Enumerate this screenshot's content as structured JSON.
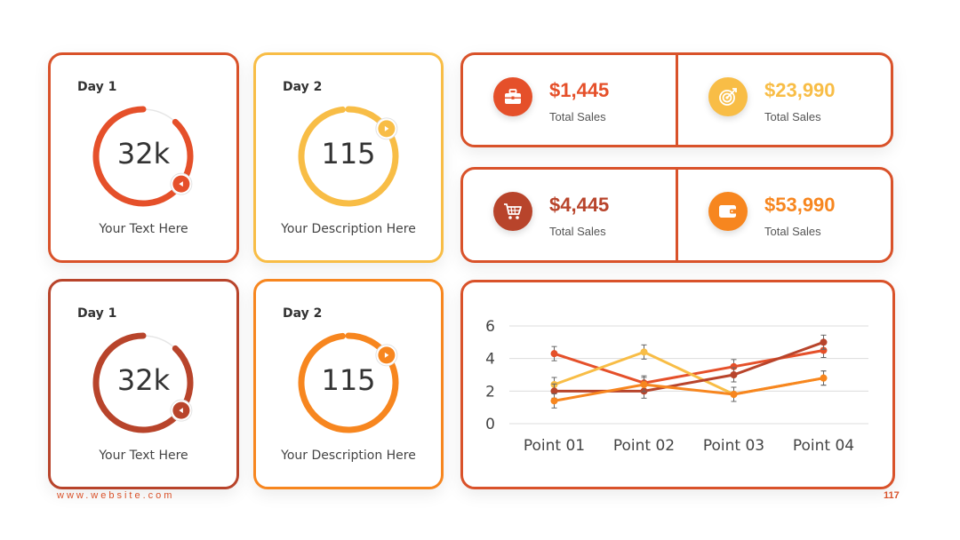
{
  "colors": {
    "red": "#e5502a",
    "yellow": "#f8bd46",
    "brown": "#b8442b",
    "orange": "#f7861f",
    "border": "#d9522a",
    "track": "#e6e6e6"
  },
  "gauges": [
    {
      "day": "Day 1",
      "value": "32k",
      "caption": "Your Text Here",
      "progress": 0.88,
      "color": "#e5502a",
      "border": "#d9522a",
      "marker": "left-arrow-icon"
    },
    {
      "day": "Day 2",
      "value": "115",
      "caption": "Your Description Here",
      "progress": 0.98,
      "color": "#f8bd46",
      "border": "#f8bd46",
      "marker": "right-arrow-icon"
    },
    {
      "day": "Day 1",
      "value": "32k",
      "caption": "Your Text Here",
      "progress": 0.88,
      "color": "#b8442b",
      "border": "#b8442b",
      "marker": "left-arrow-icon"
    },
    {
      "day": "Day 2",
      "value": "115",
      "caption": "Your Description Here",
      "progress": 0.98,
      "color": "#f7861f",
      "border": "#f7861f",
      "marker": "right-arrow-icon"
    }
  ],
  "stats": [
    {
      "amount": "$1,445",
      "label": "Total Sales",
      "color": "#e5502a",
      "icon": "briefcase-icon"
    },
    {
      "amount": "$23,990",
      "label": "Total Sales",
      "color": "#f8bd46",
      "icon": "target-icon"
    },
    {
      "amount": "$4,445",
      "label": "Total Sales",
      "color": "#b8442b",
      "icon": "cart-icon"
    },
    {
      "amount": "$53,990",
      "label": "Total Sales",
      "color": "#f7861f",
      "icon": "wallet-icon"
    }
  ],
  "chart_data": {
    "type": "line",
    "categories": [
      "Point 01",
      "Point 02",
      "Point 03",
      "Point 04"
    ],
    "ylim": [
      0,
      6
    ],
    "yticks": [
      0,
      2,
      4,
      6
    ],
    "grid": true,
    "error_bars": true,
    "series": [
      {
        "values": [
          4.3,
          2.5,
          3.5,
          4.5
        ],
        "color": "#e5502a"
      },
      {
        "values": [
          2.4,
          4.4,
          1.8,
          2.8
        ],
        "color": "#f8bd46"
      },
      {
        "values": [
          2.0,
          2.0,
          3.0,
          5.0
        ],
        "color": "#b8442b"
      },
      {
        "values": [
          1.4,
          2.4,
          1.8,
          2.8
        ],
        "color": "#f7861f"
      }
    ]
  },
  "footer": {
    "website": "www.website.com",
    "page": "117"
  }
}
